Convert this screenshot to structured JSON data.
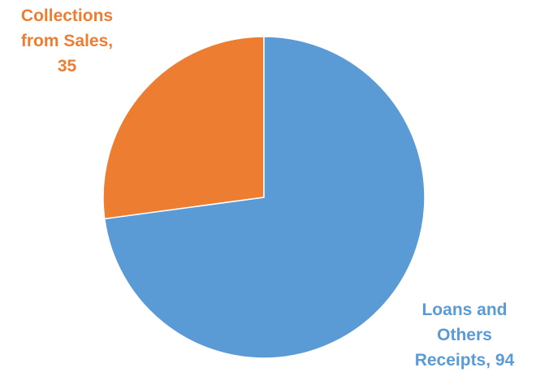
{
  "colors": {
    "collections": "#ED7D31",
    "loans": "#5B9BD5",
    "background": "#FFFFFF"
  },
  "chart_data": {
    "type": "pie",
    "categories": [
      "Collections from Sales",
      "Loans and Others Receipts"
    ],
    "values": [
      35,
      94
    ],
    "colors": [
      "#ED7D31",
      "#5B9BD5"
    ],
    "start_angle_deg": 0,
    "direction": "counterclockwise",
    "legend": "none",
    "data_labels": [
      {
        "lines": [
          "Collections",
          "from Sales,",
          "35"
        ],
        "color": "#ED7D31"
      },
      {
        "lines": [
          "Loans and",
          "Others",
          "Receipts, 94"
        ],
        "color": "#5B9BD5"
      }
    ]
  }
}
